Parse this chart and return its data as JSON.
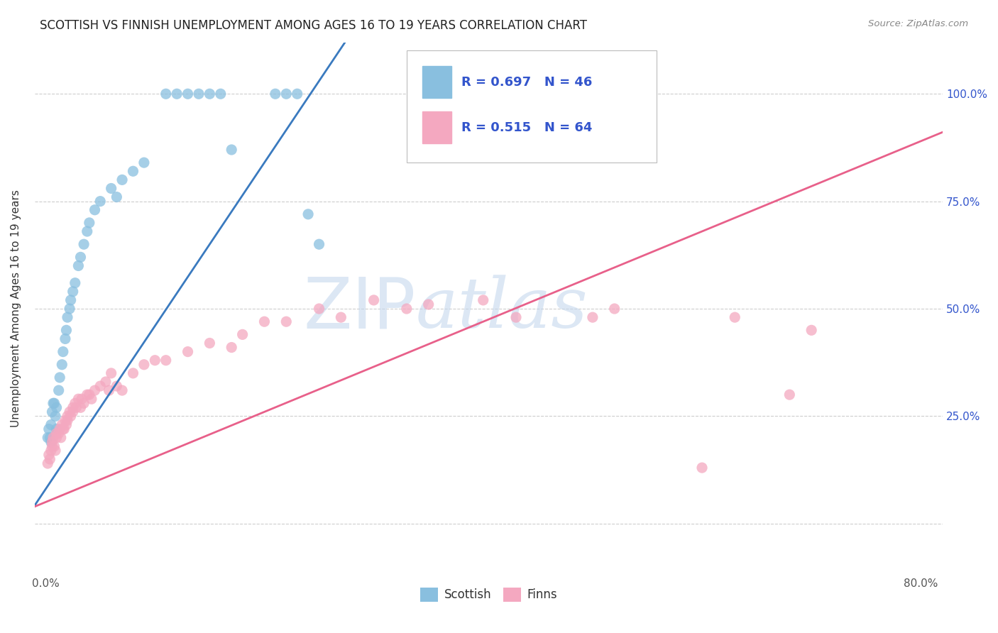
{
  "title": "SCOTTISH VS FINNISH UNEMPLOYMENT AMONG AGES 16 TO 19 YEARS CORRELATION CHART",
  "source": "Source: ZipAtlas.com",
  "ylabel": "Unemployment Among Ages 16 to 19 years",
  "scottish_R": 0.697,
  "scottish_N": 46,
  "finns_R": 0.515,
  "finns_N": 64,
  "scottish_color": "#89bfdf",
  "finns_color": "#f4a8c0",
  "scottish_line_color": "#3a7abf",
  "finns_line_color": "#e8608a",
  "watermark_color": "#c5d8ee",
  "background_color": "#ffffff",
  "grid_color": "#c8c8c8",
  "legend_text_color": "#3355cc",
  "scottish_slope": 3.8,
  "scottish_intercept": 0.08,
  "finns_slope": 1.05,
  "finns_intercept": 0.05,
  "scottish_points_x": [
    0.002,
    0.003,
    0.004,
    0.005,
    0.005,
    0.006,
    0.007,
    0.008,
    0.009,
    0.01,
    0.01,
    0.012,
    0.013,
    0.015,
    0.016,
    0.018,
    0.019,
    0.02,
    0.022,
    0.023,
    0.025,
    0.027,
    0.03,
    0.032,
    0.035,
    0.038,
    0.04,
    0.045,
    0.05,
    0.06,
    0.065,
    0.07,
    0.08,
    0.09,
    0.11,
    0.12,
    0.13,
    0.14,
    0.15,
    0.16,
    0.17,
    0.21,
    0.22,
    0.23,
    0.24,
    0.25
  ],
  "scottish_points_y": [
    0.2,
    0.22,
    0.2,
    0.23,
    0.19,
    0.26,
    0.28,
    0.28,
    0.25,
    0.22,
    0.27,
    0.31,
    0.34,
    0.37,
    0.4,
    0.43,
    0.45,
    0.48,
    0.5,
    0.52,
    0.54,
    0.56,
    0.6,
    0.62,
    0.65,
    0.68,
    0.7,
    0.73,
    0.75,
    0.78,
    0.76,
    0.8,
    0.82,
    0.84,
    1.0,
    1.0,
    1.0,
    1.0,
    1.0,
    1.0,
    0.87,
    1.0,
    1.0,
    1.0,
    0.72,
    0.65
  ],
  "finns_points_x": [
    0.002,
    0.003,
    0.004,
    0.005,
    0.006,
    0.006,
    0.007,
    0.008,
    0.009,
    0.01,
    0.01,
    0.012,
    0.013,
    0.014,
    0.015,
    0.016,
    0.017,
    0.018,
    0.019,
    0.02,
    0.02,
    0.022,
    0.023,
    0.025,
    0.025,
    0.027,
    0.028,
    0.03,
    0.032,
    0.033,
    0.035,
    0.038,
    0.04,
    0.042,
    0.045,
    0.05,
    0.055,
    0.058,
    0.06,
    0.065,
    0.07,
    0.08,
    0.09,
    0.1,
    0.11,
    0.13,
    0.15,
    0.17,
    0.18,
    0.2,
    0.22,
    0.25,
    0.27,
    0.3,
    0.33,
    0.35,
    0.4,
    0.43,
    0.5,
    0.52,
    0.6,
    0.63,
    0.68,
    0.7
  ],
  "finns_points_y": [
    0.14,
    0.16,
    0.15,
    0.17,
    0.19,
    0.18,
    0.2,
    0.18,
    0.17,
    0.21,
    0.2,
    0.21,
    0.22,
    0.2,
    0.23,
    0.22,
    0.22,
    0.24,
    0.23,
    0.25,
    0.24,
    0.26,
    0.25,
    0.27,
    0.26,
    0.28,
    0.27,
    0.29,
    0.27,
    0.29,
    0.28,
    0.3,
    0.3,
    0.29,
    0.31,
    0.32,
    0.33,
    0.31,
    0.35,
    0.32,
    0.31,
    0.35,
    0.37,
    0.38,
    0.38,
    0.4,
    0.42,
    0.41,
    0.44,
    0.47,
    0.47,
    0.5,
    0.48,
    0.52,
    0.5,
    0.51,
    0.52,
    0.48,
    0.48,
    0.5,
    0.13,
    0.48,
    0.3,
    0.45
  ]
}
